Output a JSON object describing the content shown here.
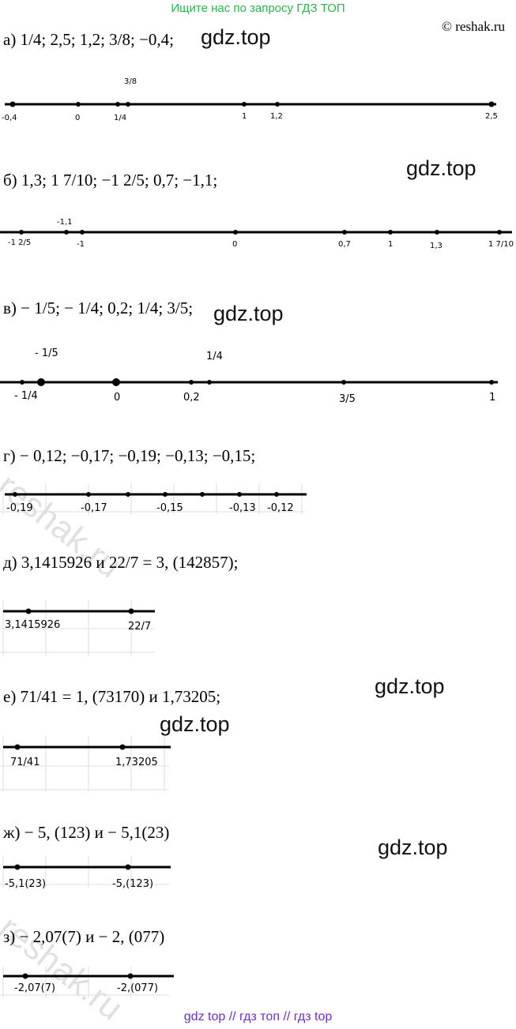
{
  "banner": "Ищите нас по запросу ГДЗ ТОП",
  "copyright": "© reshak.ru",
  "watermark": "gdz.top",
  "reshak_watermark": "reshak.ru",
  "footer": "gdz top  //  гдз топ  //  гдз top",
  "problems": {
    "a": {
      "text": "а) 1/4; 2,5; 1,2; 3/8;  −0,4;",
      "labels": {
        "m04": "-0,4",
        "zero": "0",
        "quarter": "1/4",
        "three8": "3/8",
        "one": "1",
        "one2": "1,2",
        "two5": "2,5"
      }
    },
    "b": {
      "text": "б) 1,3; 1 7/10;  −1 2/5; 0,7;  −1,1;",
      "labels": {
        "m125": "-1 2/5",
        "m11": "-1,1",
        "m1": "-1",
        "zero": "0",
        "p07": "0,7",
        "one": "1",
        "p13": "1,3",
        "p17": "1 7/10"
      }
    },
    "v": {
      "text": "в) − 1/5;  − 1/4; 0,2; 1/4; 3/5;",
      "labels": {
        "mq": "- 1/4",
        "mf": "- 1/5",
        "zero": "0",
        "p02": "0,2",
        "q": "1/4",
        "tf": "3/5",
        "one": "1"
      }
    },
    "g": {
      "text": "г) − 0,12;  −0,17;  −0,19;  −0,13;  −0,15;",
      "labels": {
        "m19": "-0,19",
        "m17": "-0,17",
        "m15": "-0,15",
        "m13": "-0,13",
        "m12": "-0,12"
      }
    },
    "d": {
      "text": "д) 3,1415926 и 22/7 = 3, (142857);",
      "labels": {
        "pi": "3,1415926",
        "frac": "22/7"
      }
    },
    "e": {
      "text": "е) 71/41 = 1, (73170) и 1,73205;",
      "labels": {
        "frac": "71/41",
        "dec": "1,73205"
      }
    },
    "zh": {
      "text": "ж) − 5, (123) и − 5,1(23)",
      "labels": {
        "a": "-5,1(23)",
        "b": "-5,(123)"
      }
    },
    "z": {
      "text": "з) − 2,07(7) и − 2, (077)",
      "labels": {
        "a": "-2,07(7)",
        "b": "-2,(077)"
      }
    }
  }
}
